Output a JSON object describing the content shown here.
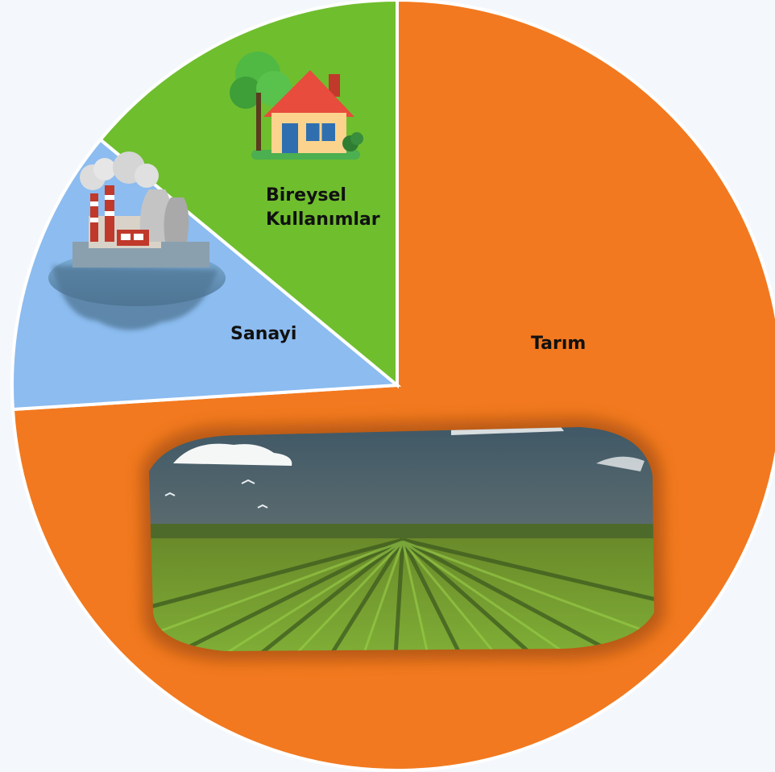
{
  "chart_data": {
    "type": "pie",
    "title": "",
    "categories": [
      "Tarım",
      "Sanayi",
      "Bireysel Kullanımlar"
    ],
    "values": [
      74,
      12,
      14
    ],
    "colors": [
      "#f2791f",
      "#8cbcf0",
      "#6fbe2e"
    ],
    "start_angle_deg": 0,
    "direction": "clockwise",
    "labels": [
      {
        "lines": [
          "Tarım"
        ]
      },
      {
        "lines": [
          "Sanayi"
        ]
      },
      {
        "lines": [
          "Bireysel",
          "Kullanımlar"
        ]
      }
    ],
    "icons": [
      "farm-field-icon",
      "factory-icon",
      "house-icon"
    ]
  },
  "background_color": "#f4f8fc"
}
